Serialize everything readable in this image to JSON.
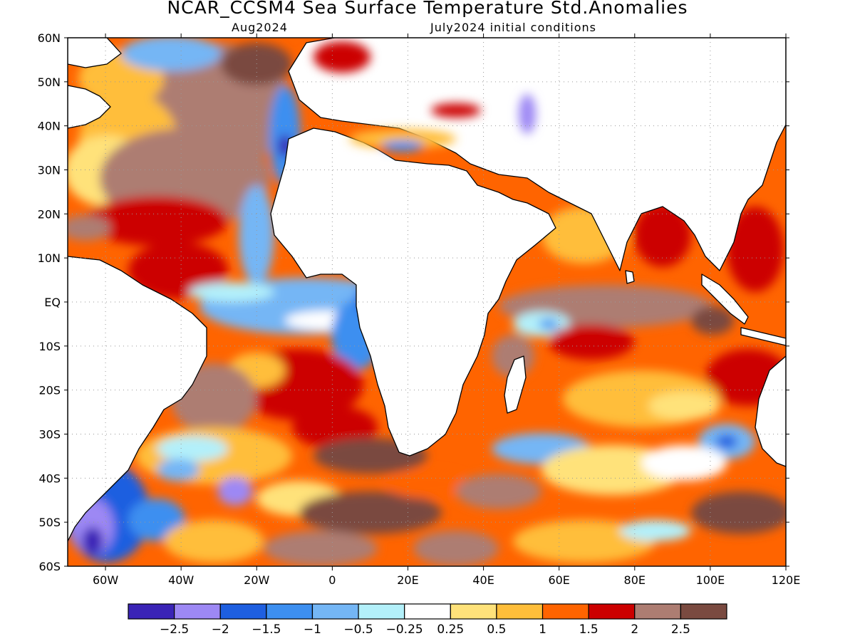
{
  "title": "NCAR_CCSM4 Sea Surface Temperature Std.Anomalies",
  "subtitle_left": "Aug2024",
  "subtitle_right": "July2024 initial conditions",
  "map": {
    "lat_labels": [
      "60N",
      "50N",
      "40N",
      "30N",
      "20N",
      "10N",
      "EQ",
      "10S",
      "20S",
      "30S",
      "40S",
      "50S",
      "60S"
    ],
    "lon_labels": [
      "60W",
      "40W",
      "20W",
      "0",
      "20E",
      "40E",
      "60E",
      "80E",
      "100E",
      "120E"
    ],
    "land_color": "#ffffff",
    "coastline_color": "#000000",
    "grid_style": "dotted"
  },
  "colorbar": {
    "colors": [
      "#3a24b6",
      "#9d88f4",
      "#1e5fe0",
      "#3d8ff0",
      "#74b6f5",
      "#b3f0fa",
      "#ffffff",
      "#ffe27a",
      "#ffbe3a",
      "#ff6400",
      "#cc0000",
      "#ad7d72",
      "#7a4a40"
    ],
    "labels": [
      "−2.5",
      "−2",
      "−1.5",
      "−1",
      "−0.5",
      "−0.25",
      "0.25",
      "0.5",
      "1",
      "1.5",
      "2",
      "2.5"
    ]
  }
}
